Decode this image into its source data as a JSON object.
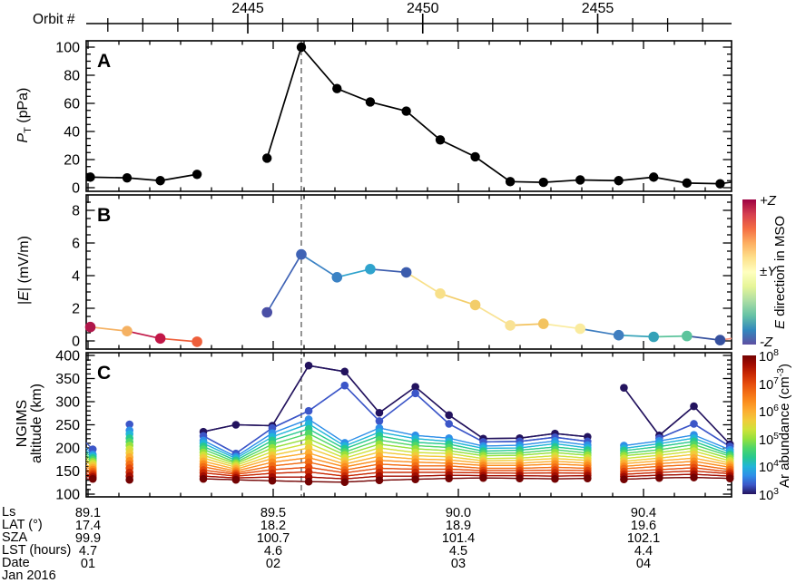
{
  "top_axis": {
    "label": "Orbit #",
    "major_ticks": [
      2445,
      2450,
      2455
    ],
    "minor_tick_start": 2441,
    "minor_tick_end": 2458
  },
  "event_line_orbit": 2446.53,
  "chart_data": [
    {
      "type": "line",
      "panel": "A",
      "ylabel": {
        "italic": "P",
        "sub": "T",
        "rest": " (pPa)"
      },
      "ylim": [
        -4,
        105
      ],
      "yticks": [
        0,
        20,
        40,
        60,
        80,
        100
      ],
      "minor_step": 5,
      "x_orbit": [
        2440.5,
        2441.55,
        2442.5,
        2443.55,
        2445.55,
        2446.53,
        2447.55,
        2448.5,
        2449.53,
        2450.5,
        2451.5,
        2452.5,
        2453.45,
        2454.5,
        2455.6,
        2456.6,
        2457.55,
        2458.5
      ],
      "values": [
        7.5,
        7,
        5,
        9.5,
        21,
        100,
        70.5,
        61,
        54.5,
        34,
        22,
        4.3,
        3.8,
        5.5,
        5,
        7.5,
        3.3,
        2.8
      ],
      "marker_color": "#000000",
      "groups": [
        [
          0,
          3
        ],
        [
          4,
          17
        ]
      ],
      "edge_segment": {
        "orbit": 2458.83,
        "value": 4.0,
        "color": "#000000"
      }
    },
    {
      "type": "line",
      "panel": "B",
      "ylabel": {
        "pre": "|",
        "italic": "E",
        "rest": "| (mV/m)"
      },
      "ylim": [
        -0.5,
        8.9
      ],
      "yticks": [
        0,
        2,
        4,
        6,
        8
      ],
      "minor_step": 0.5,
      "x_orbit": [
        2440.5,
        2441.55,
        2442.5,
        2443.55,
        2445.55,
        2446.53,
        2447.55,
        2448.5,
        2449.53,
        2450.5,
        2451.5,
        2452.5,
        2453.45,
        2454.5,
        2455.6,
        2456.6,
        2457.55,
        2458.5
      ],
      "values": [
        0.85,
        0.6,
        0.15,
        -0.05,
        1.75,
        5.3,
        3.9,
        4.4,
        4.2,
        2.9,
        2.2,
        0.95,
        1.05,
        0.75,
        0.35,
        0.25,
        0.3,
        0.05
      ],
      "colors": [
        "#b0174a",
        "#f5b162",
        "#c11747",
        "#ee5f3b",
        "#4a4fa5",
        "#3f63b5",
        "#3b82c4",
        "#2fa3cd",
        "#3b5cad",
        "#f8e089",
        "#f3cd6a",
        "#f9e294",
        "#f3c35f",
        "#faeb9e",
        "#3f7ec0",
        "#34a2b8",
        "#5cc49c",
        "#36519f"
      ],
      "groups": [
        [
          0,
          3
        ],
        [
          4,
          17
        ]
      ],
      "edge_segment": {
        "orbit": 2458.83,
        "value": 0.15,
        "color": "#f4907e"
      }
    },
    {
      "type": "scatter-stack",
      "panel": "C",
      "ylabel_lines": [
        "NGIMS",
        "altitude (km)"
      ],
      "ylim": [
        94,
        405
      ],
      "yticks": [
        100,
        150,
        200,
        250,
        300,
        350,
        400
      ],
      "minor_step": 10,
      "x_orbit": [
        2440.57,
        2441.62,
        2443.73,
        2444.66,
        2445.7,
        2446.74,
        2447.77,
        2448.76,
        2449.79,
        2450.75,
        2451.73,
        2452.77,
        2453.78,
        2454.71,
        2455.75,
        2456.76,
        2457.75,
        2458.78
      ],
      "groups": [
        [
          0,
          0
        ],
        [
          1,
          1
        ],
        [
          2,
          13
        ],
        [
          14,
          17
        ]
      ],
      "levels": [
        {
          "color": "#730202",
          "alts": [
            133,
            131,
            133,
            131,
            129,
            127,
            126,
            130,
            132,
            134,
            135,
            134,
            133,
            134,
            132,
            135,
            136,
            134
          ]
        },
        {
          "color": "#a30d01",
          "alts": [
            137,
            139,
            139,
            135,
            137,
            137,
            133,
            139,
            139,
            141,
            140,
            140,
            139,
            140,
            138,
            141,
            143,
            139
          ]
        },
        {
          "color": "#c92903",
          "alts": [
            141,
            147,
            146,
            139,
            145,
            148,
            139,
            147,
            147,
            147,
            146,
            145,
            146,
            145,
            143,
            147,
            150,
            144
          ]
        },
        {
          "color": "#e44a0c",
          "alts": [
            145,
            156,
            152,
            143,
            153,
            158,
            146,
            156,
            154,
            154,
            151,
            151,
            152,
            151,
            149,
            153,
            157,
            148
          ]
        },
        {
          "color": "#f26d15",
          "alts": [
            149,
            164,
            159,
            146,
            161,
            169,
            152,
            165,
            161,
            161,
            156,
            156,
            158,
            156,
            155,
            160,
            164,
            153
          ]
        },
        {
          "color": "#fb8d1e",
          "alts": [
            153,
            172,
            165,
            150,
            169,
            179,
            159,
            173,
            169,
            167,
            162,
            162,
            165,
            162,
            160,
            166,
            171,
            158
          ]
        },
        {
          "color": "#fcad32",
          "alts": [
            157,
            180,
            171,
            154,
            177,
            189,
            165,
            182,
            176,
            174,
            167,
            167,
            171,
            167,
            166,
            172,
            178,
            163
          ]
        },
        {
          "color": "#f1cb3a",
          "alts": [
            162,
            189,
            178,
            158,
            184,
            200,
            172,
            191,
            183,
            181,
            172,
            173,
            177,
            173,
            171,
            178,
            186,
            167
          ]
        },
        {
          "color": "#cfe23a",
          "alts": [
            166,
            197,
            184,
            162,
            192,
            210,
            178,
            200,
            190,
            188,
            177,
            178,
            183,
            178,
            177,
            184,
            193,
            172
          ]
        },
        {
          "color": "#96e13d",
          "alts": [
            170,
            205,
            190,
            166,
            200,
            220,
            185,
            208,
            198,
            194,
            183,
            184,
            190,
            184,
            183,
            190,
            200,
            177
          ]
        },
        {
          "color": "#50d668",
          "alts": [
            174,
            213,
            197,
            169,
            208,
            231,
            191,
            217,
            205,
            201,
            188,
            189,
            196,
            189,
            188,
            196,
            207,
            182
          ]
        },
        {
          "color": "#28c98e",
          "alts": [
            178,
            221,
            203,
            173,
            216,
            241,
            198,
            226,
            212,
            208,
            193,
            195,
            202,
            195,
            194,
            203,
            214,
            186
          ]
        },
        {
          "color": "#21b5d8",
          "alts": [
            182,
            230,
            210,
            177,
            224,
            252,
            204,
            234,
            220,
            214,
            199,
            200,
            209,
            200,
            199,
            209,
            221,
            191
          ]
        },
        {
          "color": "#2f8fe8",
          "alts": [
            186,
            238,
            216,
            181,
            232,
            262,
            211,
            243,
            227,
            221,
            204,
            206,
            215,
            206,
            205,
            215,
            228,
            196
          ]
        },
        {
          "color": "#3c56c8",
          "alts": [
            197,
            251,
            226,
            188,
            243,
            280,
            335,
            258,
            318,
            252,
            213,
            214,
            223,
            214,
            null,
            221,
            252,
            203
          ]
        },
        {
          "color": "#23135e",
          "alts": [
            null,
            null,
            235,
            250,
            248,
            378,
            365,
            276,
            332,
            271,
            220,
            221,
            231,
            224,
            330,
            227,
            290,
            208
          ]
        }
      ],
      "left_stub_alts": [
        133,
        138,
        143,
        148,
        153,
        158,
        163,
        169,
        174,
        179,
        184,
        189,
        194,
        200,
        211,
        null
      ]
    }
  ],
  "colorbars": {
    "e_dir": {
      "gradient_top_to_bottom": [
        "#9e0142",
        "#d53e4f",
        "#f46d43",
        "#fdae61",
        "#fee08b",
        "#ffffbf",
        "#e6f598",
        "#abdda4",
        "#66c2a5",
        "#3288bd",
        "#5e4fa2"
      ],
      "top_label": "+Z",
      "mid_label": "±Y",
      "bottom_label": "-Z",
      "title": {
        "italic": "E",
        "rest": " direction in MSO"
      }
    },
    "ar": {
      "gradient_top_to_bottom": [
        "#730202",
        "#a30d01",
        "#c92903",
        "#e44a0c",
        "#f26d15",
        "#fb8d1e",
        "#fcad32",
        "#f1cb3a",
        "#cfe23a",
        "#96e13d",
        "#50d668",
        "#28c98e",
        "#21b5d8",
        "#2f8fe8",
        "#3c56c8",
        "#23135e"
      ],
      "base": "10",
      "exponents": [
        "8",
        "7",
        "6",
        "5",
        "4",
        "3"
      ],
      "title": {
        "pre": "Ar abundance (cm",
        "sup": "-3",
        "post": ")"
      }
    }
  },
  "bottom_axis": {
    "rows": [
      {
        "header": "Ls",
        "values": [
          "89.1",
          "89.5",
          "90.0",
          "90.4"
        ]
      },
      {
        "header": "LAT (°)",
        "values": [
          "17.4",
          "18.2",
          "18.9",
          "19.6"
        ]
      },
      {
        "header": "SZA",
        "values": [
          "99.9",
          "100.7",
          "101.4",
          "102.1"
        ]
      },
      {
        "header": "LST (hours)",
        "values": [
          "4.7",
          "4.6",
          "4.5",
          "4.4"
        ]
      },
      {
        "header": "Date",
        "values": [
          "01",
          "02",
          "03",
          "04"
        ]
      }
    ],
    "footer": "Jan 2016"
  }
}
